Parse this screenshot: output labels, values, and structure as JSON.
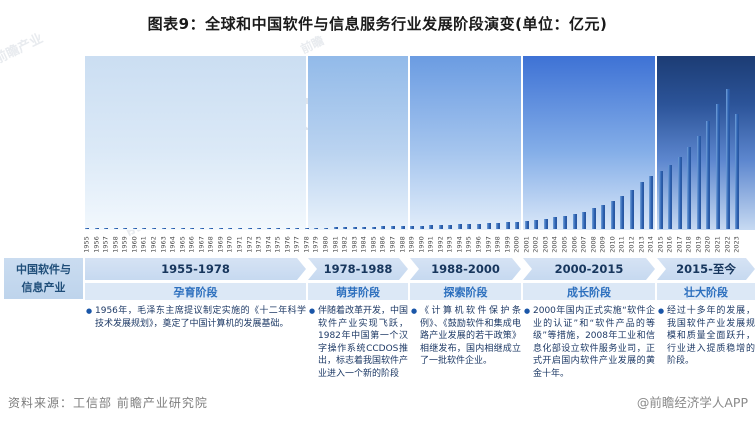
{
  "title": "图表9：全球和中国软件与信息服务行业发展阶段演变(单位：亿元)",
  "row_label": {
    "line1": "中国软件与",
    "line2": "信息产业"
  },
  "stages": [
    {
      "period": "1955-1978",
      "name": "孕育阶段",
      "description": "1956年，毛泽东主席提议制定实施的《十二年科学技术发展规划》，奠定了中国计算机的发展基础。"
    },
    {
      "period": "1978-1988",
      "name": "萌芽阶段",
      "description": "伴随着改革开发，中国软件产业实现飞跃，1982年中国第一个汉字操作系统CCDOS推出，标志着我国软件产业进入一个新的阶段"
    },
    {
      "period": "1988-2000",
      "name": "探索阶段",
      "description": "《计算机软件保护条例》、《鼓励软件和集成电路产业发展的若干政策》相继发布，国内相继成立了一批软件企业。"
    },
    {
      "period": "2000-2015",
      "name": "成长阶段",
      "description": "2000年国内正式实施“软件企业的认证”和“软件产品的等级”等措施，2008年工业和信息化部设立软件服务业司，正式开启国内软件产业发展的黄金十年。"
    },
    {
      "period": "2015-至今",
      "name": "壮大阶段",
      "description": "经过十多年的发展，我国软件产业发展规模和质量全面跃升，行业进入提质稳增的阶段。"
    }
  ],
  "chart_data": {
    "type": "bar",
    "title": "图表9：全球和中国软件与信息服务行业发展阶段演变(单位：亿元)",
    "unit": "亿元",
    "x": [
      1955,
      1956,
      1957,
      1958,
      1959,
      1960,
      1961,
      1962,
      1963,
      1964,
      1965,
      1966,
      1967,
      1968,
      1969,
      1970,
      1971,
      1972,
      1973,
      1974,
      1975,
      1976,
      1977,
      1978,
      1979,
      1980,
      1981,
      1982,
      1983,
      1984,
      1985,
      1986,
      1987,
      1988,
      1989,
      1990,
      1991,
      1992,
      1993,
      1994,
      1995,
      1996,
      1997,
      1998,
      1999,
      2000,
      2001,
      2002,
      2003,
      2004,
      2005,
      2006,
      2007,
      2008,
      2009,
      2010,
      2011,
      2012,
      2013,
      2014,
      2015,
      2016,
      2017,
      2018,
      2019,
      2020,
      2021,
      2022,
      2023
    ],
    "values": [
      1,
      1,
      1,
      1,
      1,
      1,
      1,
      1,
      1,
      1,
      1,
      1,
      1,
      1,
      1,
      1,
      1,
      1,
      1,
      1,
      1,
      1,
      1,
      1,
      1.5,
      1.5,
      2,
      2,
      2,
      2.5,
      2.5,
      3,
      3,
      3,
      3.5,
      3.5,
      4,
      4,
      4.5,
      5,
      5,
      5.5,
      6,
      6.5,
      7,
      7.5,
      8,
      9,
      10,
      12,
      13.5,
      15.5,
      17.5,
      21,
      24,
      28,
      33,
      39,
      47,
      53,
      58,
      64,
      72,
      82,
      93,
      108,
      125,
      140,
      115
    ],
    "value_scale": "relative bar height in px (no y-axis labels shown in figure)",
    "ylim": [
      0,
      174
    ],
    "grid": false,
    "legend": false,
    "stage_bands": [
      "1955-1978 孕育阶段",
      "1978-1988 萌芽阶段",
      "1988-2000 探索阶段",
      "2000-2015 成长阶段",
      "2015-至今 壮大阶段"
    ]
  },
  "footer": {
    "source": "资料来源：工信部 前瞻产业研究院",
    "brand": "@前瞻经济学人APP"
  },
  "watermark_text": "前瞻产业研究院",
  "colors": {
    "panel_tops": [
      "#cbdef2",
      "#92bae9",
      "#6b9ce2",
      "#3e72d5",
      "#1c3c74"
    ],
    "bar": "#2d63b3",
    "period_text": "#17365d",
    "stage_name_text": "#2c6fbe",
    "band_bg": "#cfdff2"
  }
}
